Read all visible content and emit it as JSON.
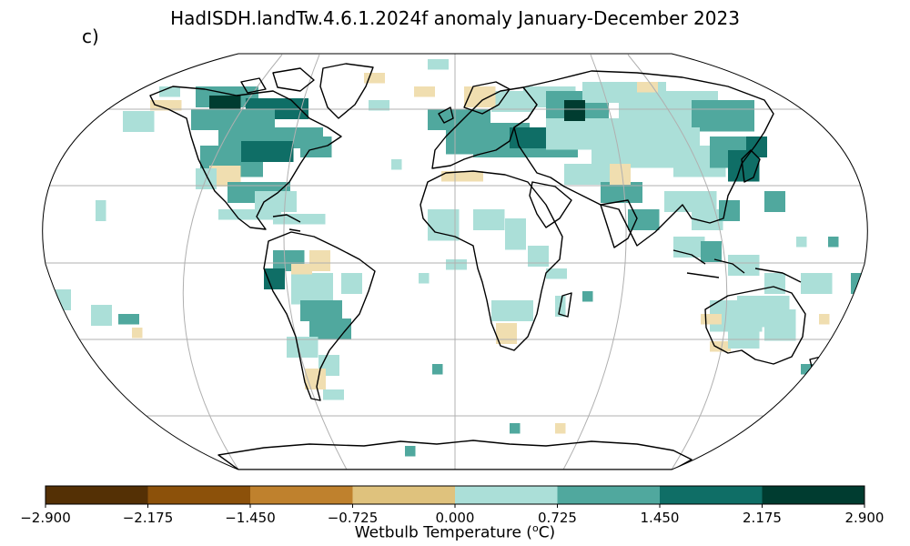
{
  "title": "HadISDH.landTw.4.6.1.2024f anomaly January-December 2023",
  "panel_label": "c)",
  "colorbar": {
    "label": "Wetbulb Temperature (°C)",
    "label_main": "Wetbulb Temperature (",
    "label_sup": "o",
    "label_end": "C)",
    "ticks": [
      "−2.900",
      "−2.175",
      "−1.450",
      "−0.725",
      "0.000",
      "0.725",
      "1.450",
      "2.175",
      "2.900"
    ],
    "colors": [
      "#543005",
      "#8c510a",
      "#bf812d",
      "#dfc27d",
      "#f0e0b2",
      "#abdfd8",
      "#50a89e",
      "#0f6e66",
      "#003c30"
    ],
    "min": -2.9,
    "max": 2.9
  },
  "map": {
    "projection": "Robinson",
    "gridlines": true,
    "colors": {
      "coast": "#000000",
      "grid": "#b0b0b0",
      "c1": "#f0deb0",
      "c2": "#abdfd8",
      "c3": "#50a89e",
      "c4": "#0f6e66",
      "c5": "#003c30"
    }
  }
}
